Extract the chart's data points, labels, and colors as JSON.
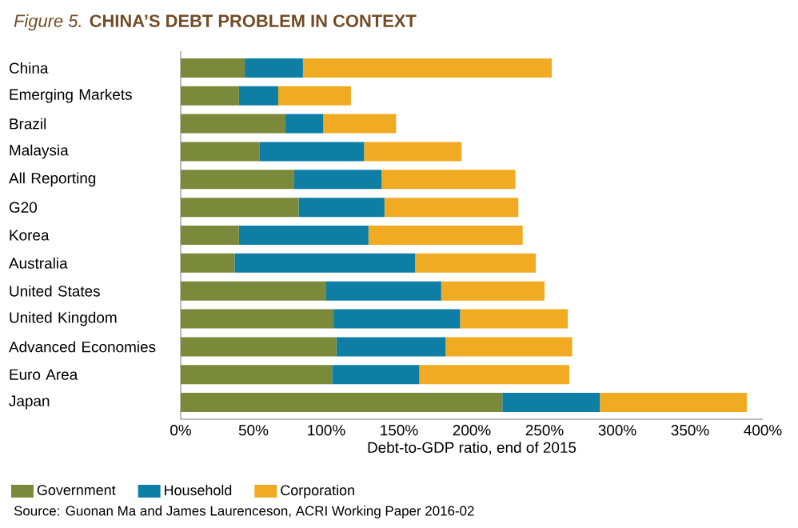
{
  "chart_data": {
    "type": "bar",
    "orientation": "horizontal",
    "stacked": true,
    "title": "*Figure 5.* **CHINA’S DEBT PROBLEM IN CONTEXT**",
    "xlabel": "Debt-to-GDP ratio, end of 2015",
    "categories": [
      "China",
      "Emerging Markets",
      "Brazil",
      "Malaysia",
      "All Reporting",
      "G20",
      "Korea",
      "Australia",
      "United States",
      "United Kingdom",
      "Advanced Economies",
      "Euro Area",
      "Japan"
    ],
    "series": [
      {
        "name": "Government",
        "color": "#7a8a3a",
        "values": [
          44,
          40,
          72,
          54,
          78,
          81,
          40,
          37,
          100,
          105,
          107,
          104,
          221
        ]
      },
      {
        "name": "Household",
        "color": "#0e7ea5",
        "values": [
          40,
          27,
          26,
          72,
          60,
          59,
          89,
          124,
          79,
          87,
          75,
          60,
          67
        ]
      },
      {
        "name": "Corporation",
        "color": "#f0ab22",
        "values": [
          171,
          50,
          50,
          67,
          92,
          92,
          106,
          83,
          71,
          74,
          87,
          103,
          101
        ]
      }
    ],
    "xlim": [
      0,
      400
    ],
    "xticks": [
      {
        "value": 0,
        "label": "0%"
      },
      {
        "value": 50,
        "label": "50%"
      },
      {
        "value": 100,
        "label": "100%"
      },
      {
        "value": 150,
        "label": "150%"
      },
      {
        "value": 200,
        "label": "200%"
      },
      {
        "value": 250,
        "label": "250%"
      },
      {
        "value": 300,
        "label": "300%"
      },
      {
        "value": 350,
        "label": "350%"
      },
      {
        "value": 400,
        "label": "400%"
      }
    ],
    "legend": "bottom left",
    "annotations": [
      "Source: Guonan Ma and James Laurenceson, ACRI Working Paper 2016-02"
    ]
  }
}
